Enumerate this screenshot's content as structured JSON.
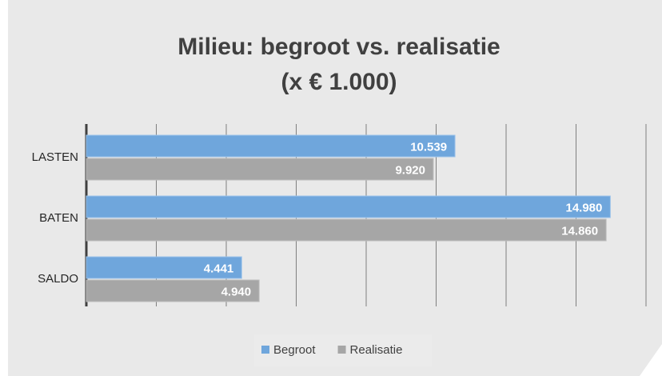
{
  "chart_data": {
    "type": "hbar",
    "title": [
      "Milieu: begroot vs. realisatie",
      "(x € 1.000)"
    ],
    "categories": [
      "LASTEN",
      "BATEN",
      "SALDO"
    ],
    "series": [
      {
        "name": "Begroot",
        "color": "#6fa6dc",
        "values": [
          10539,
          14980,
          4441
        ],
        "value_labels": [
          "10.539",
          "14.980",
          "4.441"
        ]
      },
      {
        "name": "Realisatie",
        "color": "#a6a6a6",
        "values": [
          9920,
          14860,
          4940
        ],
        "value_labels": [
          "9.920",
          "14.860",
          "4.940"
        ]
      }
    ],
    "xlim": [
      0,
      16000
    ],
    "xticks": [
      0,
      2000,
      4000,
      6000,
      8000,
      10000,
      12000,
      14000,
      16000
    ],
    "grid": true,
    "legend": "bottom"
  }
}
